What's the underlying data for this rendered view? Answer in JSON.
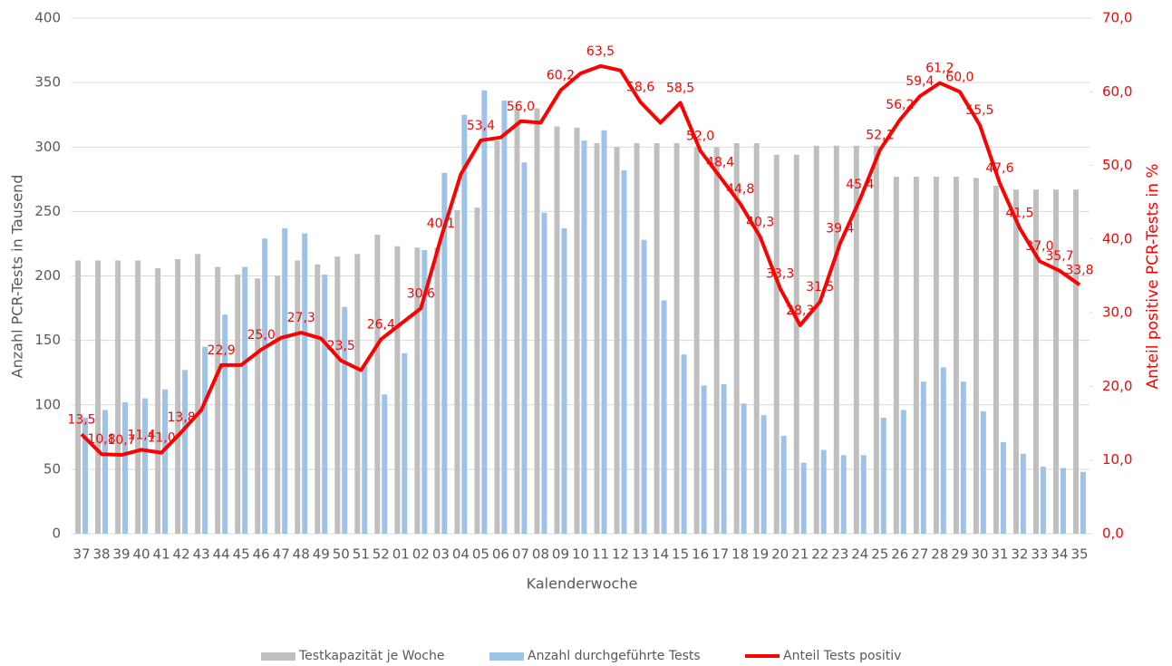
{
  "chart_data": {
    "type": "bar-line",
    "categories": [
      "37",
      "38",
      "39",
      "40",
      "41",
      "42",
      "43",
      "44",
      "45",
      "46",
      "47",
      "48",
      "49",
      "50",
      "51",
      "52",
      "01",
      "02",
      "03",
      "04",
      "05",
      "06",
      "07",
      "08",
      "09",
      "10",
      "11",
      "12",
      "13",
      "14",
      "15",
      "16",
      "17",
      "18",
      "19",
      "20",
      "21",
      "22",
      "23",
      "24",
      "25",
      "26",
      "27",
      "28",
      "29",
      "30",
      "31",
      "32",
      "33",
      "34",
      "35"
    ],
    "x_label": "Kalenderwoche",
    "y_label": "Anzahl PCR-Tests in Tausend",
    "y2_label": "Anteil positive PCR-Tests in %",
    "ylim": [
      0,
      400
    ],
    "yticks": [
      0,
      50,
      100,
      150,
      200,
      250,
      300,
      350,
      400
    ],
    "y2lim": [
      0,
      70
    ],
    "y2ticks": [
      {
        "value": 0,
        "label": "0,0"
      },
      {
        "value": 10,
        "label": "10,0"
      },
      {
        "value": 20,
        "label": "20,0"
      },
      {
        "value": 30,
        "label": "30,0"
      },
      {
        "value": 40,
        "label": "40,0"
      },
      {
        "value": 50,
        "label": "50,0"
      },
      {
        "value": 60,
        "label": "60,0"
      },
      {
        "value": 70,
        "label": "70,0"
      }
    ],
    "grid": true,
    "legend": "bottom",
    "series": [
      {
        "name": "Testkapazität je Woche",
        "type": "bar",
        "color": "#bfbfbf",
        "values": [
          212,
          212,
          212,
          212,
          206,
          213,
          217,
          207,
          201,
          198,
          200,
          212,
          209,
          215,
          217,
          232,
          223,
          222,
          222,
          251,
          253,
          305,
          330,
          330,
          316,
          315,
          303,
          300,
          303,
          303,
          303,
          300,
          300,
          303,
          303,
          294,
          294,
          301,
          301,
          301,
          301,
          277,
          277,
          277,
          277,
          276,
          270,
          267,
          267,
          267,
          267
        ]
      },
      {
        "name": "Anzahl durchgeführte Tests",
        "type": "bar",
        "color": "#9dc3e6",
        "values": [
          90,
          96,
          102,
          105,
          112,
          127,
          145,
          170,
          207,
          229,
          237,
          233,
          201,
          176,
          130,
          108,
          140,
          220,
          280,
          325,
          344,
          336,
          288,
          249,
          237,
          305,
          313,
          282,
          228,
          181,
          139,
          115,
          116,
          101,
          92,
          76,
          55,
          65,
          61,
          61,
          90,
          96,
          118,
          129,
          118,
          95,
          71,
          62,
          52,
          51,
          48
        ]
      },
      {
        "name": "Anteil Tests positiv",
        "type": "line",
        "axis": "y2",
        "color": "#ff0000",
        "values": [
          13.5,
          10.8,
          10.7,
          11.4,
          11.0,
          13.8,
          16.8,
          22.9,
          22.9,
          25.0,
          26.6,
          27.3,
          26.5,
          23.5,
          22.2,
          26.4,
          28.5,
          30.6,
          40.1,
          48.8,
          53.4,
          53.8,
          56.0,
          55.8,
          60.2,
          62.5,
          63.5,
          62.9,
          58.6,
          55.8,
          58.5,
          52.0,
          48.4,
          44.8,
          40.3,
          33.3,
          28.3,
          31.5,
          39.4,
          45.4,
          52.1,
          56.2,
          59.4,
          61.2,
          60.0,
          55.5,
          47.6,
          41.5,
          37.0,
          35.7,
          33.8
        ],
        "value_labels": [
          "13,5",
          "10,8",
          "10,7",
          "11,4",
          "11,0",
          "13,8",
          null,
          "22,9",
          null,
          "25,0",
          null,
          "27,3",
          null,
          "23,5",
          null,
          "26,4",
          null,
          "30,6",
          "40,1",
          null,
          "53,4",
          null,
          "56,0",
          null,
          "60,2",
          null,
          "63,5",
          null,
          "58,6",
          null,
          "58,5",
          "52,0",
          "48,4",
          "44,8",
          "40,3",
          "33,3",
          "28,3",
          "31,5",
          "39,4",
          "45,4",
          "52,1",
          "56,2",
          "59,4",
          "61,2",
          "60,0",
          "55,5",
          "47,6",
          "41,5",
          "37,0",
          "35,7",
          "33,8"
        ]
      }
    ]
  }
}
